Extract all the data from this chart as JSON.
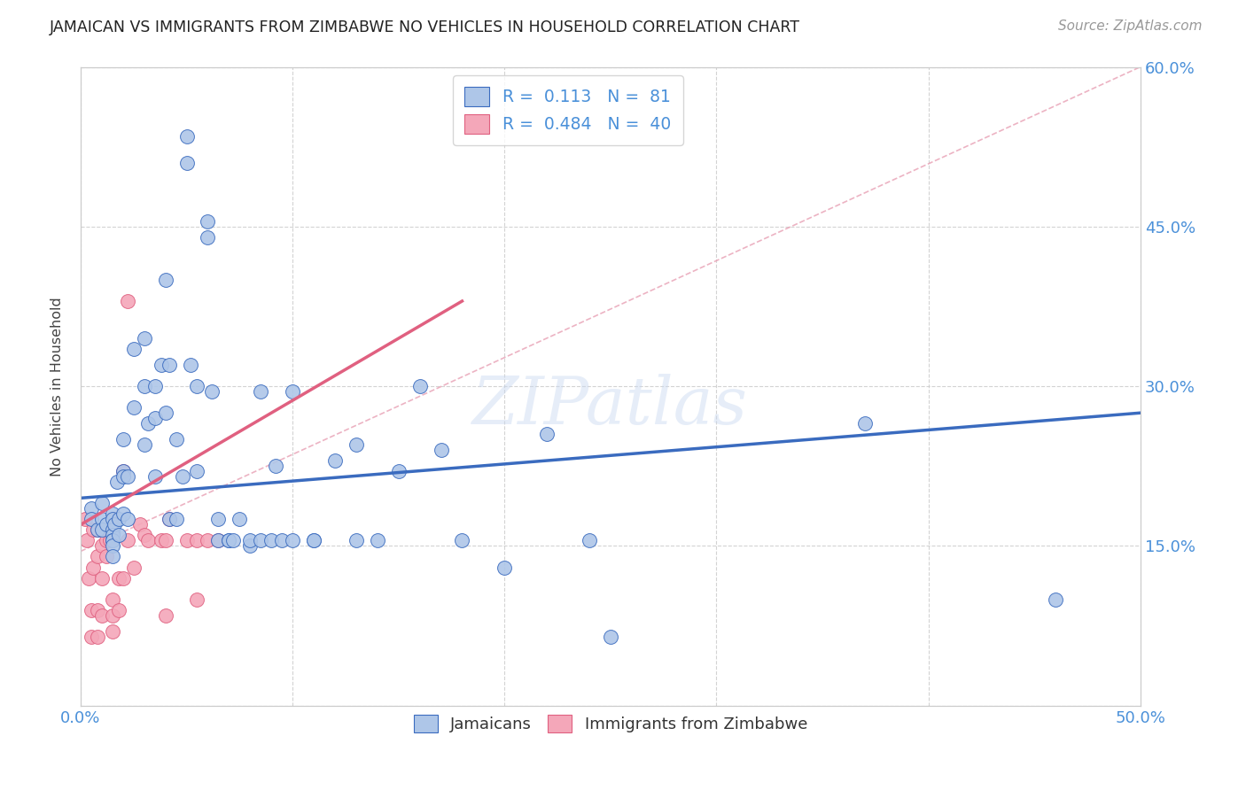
{
  "title": "JAMAICAN VS IMMIGRANTS FROM ZIMBABWE NO VEHICLES IN HOUSEHOLD CORRELATION CHART",
  "source": "Source: ZipAtlas.com",
  "ylabel": "No Vehicles in Household",
  "xlim": [
    0.0,
    0.5
  ],
  "ylim": [
    0.0,
    0.6
  ],
  "xticks": [
    0.0,
    0.1,
    0.2,
    0.3,
    0.4,
    0.5
  ],
  "yticks": [
    0.0,
    0.15,
    0.3,
    0.45,
    0.6
  ],
  "xtick_labels": [
    "0.0%",
    "",
    "",
    "",
    "",
    "50.0%"
  ],
  "ytick_labels_right": [
    "",
    "15.0%",
    "30.0%",
    "45.0%",
    "60.0%"
  ],
  "background_color": "#ffffff",
  "grid_color": "#c8c8c8",
  "jamaicans_color": "#aec6e8",
  "zimbabwe_color": "#f4a7b9",
  "line1_color": "#3a6bbf",
  "line2_color": "#e06080",
  "diagonal_color": "#e8a0b0",
  "label1": "Jamaicans",
  "label2": "Immigrants from Zimbabwe",
  "title_color": "#222222",
  "axis_color": "#4a90d9",
  "legend_line1": "R =  0.113   N =  81",
  "legend_line2": "R =  0.484   N =  40",
  "jamaicans_x": [
    0.005,
    0.005,
    0.008,
    0.01,
    0.01,
    0.01,
    0.012,
    0.015,
    0.015,
    0.015,
    0.015,
    0.015,
    0.015,
    0.015,
    0.015,
    0.016,
    0.017,
    0.018,
    0.018,
    0.02,
    0.02,
    0.02,
    0.02,
    0.022,
    0.022,
    0.025,
    0.025,
    0.03,
    0.03,
    0.03,
    0.032,
    0.035,
    0.035,
    0.035,
    0.038,
    0.04,
    0.04,
    0.042,
    0.042,
    0.045,
    0.045,
    0.048,
    0.05,
    0.05,
    0.052,
    0.055,
    0.055,
    0.06,
    0.06,
    0.062,
    0.065,
    0.065,
    0.07,
    0.07,
    0.072,
    0.075,
    0.08,
    0.08,
    0.085,
    0.085,
    0.09,
    0.092,
    0.095,
    0.1,
    0.1,
    0.11,
    0.11,
    0.12,
    0.13,
    0.13,
    0.14,
    0.15,
    0.16,
    0.17,
    0.18,
    0.2,
    0.22,
    0.24,
    0.25,
    0.37,
    0.46
  ],
  "jamaicans_y": [
    0.185,
    0.175,
    0.165,
    0.19,
    0.175,
    0.165,
    0.17,
    0.18,
    0.175,
    0.165,
    0.16,
    0.155,
    0.155,
    0.15,
    0.14,
    0.17,
    0.21,
    0.175,
    0.16,
    0.25,
    0.22,
    0.215,
    0.18,
    0.215,
    0.175,
    0.335,
    0.28,
    0.345,
    0.3,
    0.245,
    0.265,
    0.3,
    0.27,
    0.215,
    0.32,
    0.4,
    0.275,
    0.32,
    0.175,
    0.25,
    0.175,
    0.215,
    0.535,
    0.51,
    0.32,
    0.3,
    0.22,
    0.455,
    0.44,
    0.295,
    0.175,
    0.155,
    0.155,
    0.155,
    0.155,
    0.175,
    0.15,
    0.155,
    0.295,
    0.155,
    0.155,
    0.225,
    0.155,
    0.295,
    0.155,
    0.155,
    0.155,
    0.23,
    0.245,
    0.155,
    0.155,
    0.22,
    0.3,
    0.24,
    0.155,
    0.13,
    0.255,
    0.155,
    0.065,
    0.265,
    0.1
  ],
  "zimbabwe_x": [
    0.002,
    0.003,
    0.004,
    0.005,
    0.005,
    0.006,
    0.006,
    0.008,
    0.008,
    0.008,
    0.008,
    0.01,
    0.01,
    0.01,
    0.012,
    0.012,
    0.014,
    0.015,
    0.015,
    0.015,
    0.016,
    0.018,
    0.018,
    0.02,
    0.02,
    0.022,
    0.022,
    0.025,
    0.028,
    0.03,
    0.032,
    0.038,
    0.04,
    0.04,
    0.042,
    0.05,
    0.055,
    0.055,
    0.06,
    0.065
  ],
  "zimbabwe_y": [
    0.175,
    0.155,
    0.12,
    0.09,
    0.065,
    0.165,
    0.13,
    0.165,
    0.14,
    0.09,
    0.065,
    0.15,
    0.12,
    0.085,
    0.155,
    0.14,
    0.155,
    0.1,
    0.085,
    0.07,
    0.175,
    0.12,
    0.09,
    0.22,
    0.12,
    0.38,
    0.155,
    0.13,
    0.17,
    0.16,
    0.155,
    0.155,
    0.155,
    0.085,
    0.175,
    0.155,
    0.155,
    0.1,
    0.155,
    0.155
  ]
}
